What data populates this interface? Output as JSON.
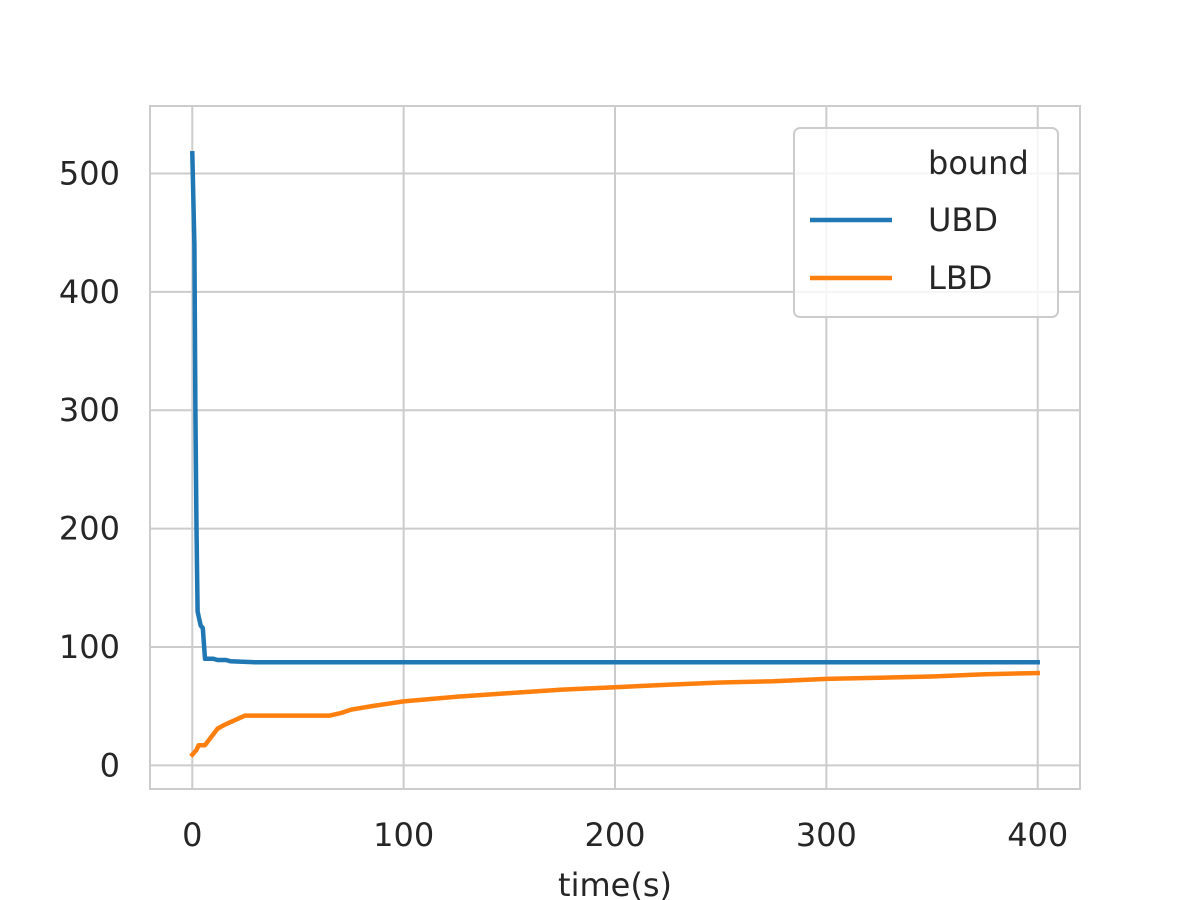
{
  "chart_data": {
    "type": "line",
    "title": "",
    "xlabel": "time(s)",
    "ylabel": "",
    "xlim": [
      -20,
      420
    ],
    "ylim": [
      -20,
      557
    ],
    "xticks": [
      0,
      100,
      200,
      300,
      400
    ],
    "yticks": [
      0,
      100,
      200,
      300,
      400,
      500
    ],
    "xtick_labels": [
      "0",
      "100",
      "200",
      "300",
      "400"
    ],
    "ytick_labels": [
      "0",
      "100",
      "200",
      "300",
      "400",
      "500"
    ],
    "grid": true,
    "legend": {
      "title": "bound",
      "position": "top-right"
    },
    "series": [
      {
        "name": "UBD",
        "color": "#1f77b4",
        "points": [
          [
            0,
            517
          ],
          [
            1,
            440
          ],
          [
            1.5,
            300
          ],
          [
            2,
            200
          ],
          [
            2.5,
            130
          ],
          [
            3,
            126
          ],
          [
            4,
            118
          ],
          [
            5,
            116
          ],
          [
            6,
            90
          ],
          [
            10,
            90
          ],
          [
            12,
            89
          ],
          [
            16,
            89
          ],
          [
            18,
            88
          ],
          [
            30,
            87
          ],
          [
            100,
            87
          ],
          [
            200,
            87
          ],
          [
            300,
            87
          ],
          [
            400,
            87
          ]
        ]
      },
      {
        "name": "LBD",
        "color": "#ff7f0e",
        "points": [
          [
            0,
            9
          ],
          [
            2,
            13
          ],
          [
            3,
            17
          ],
          [
            6,
            17
          ],
          [
            9,
            24
          ],
          [
            12,
            31
          ],
          [
            15,
            34
          ],
          [
            20,
            38
          ],
          [
            25,
            42
          ],
          [
            40,
            42
          ],
          [
            65,
            42
          ],
          [
            70,
            44
          ],
          [
            75,
            47
          ],
          [
            85,
            50
          ],
          [
            100,
            54
          ],
          [
            125,
            58
          ],
          [
            150,
            61
          ],
          [
            175,
            64
          ],
          [
            200,
            66
          ],
          [
            225,
            68
          ],
          [
            250,
            70
          ],
          [
            275,
            71
          ],
          [
            300,
            73
          ],
          [
            325,
            74
          ],
          [
            350,
            75
          ],
          [
            375,
            77
          ],
          [
            400,
            78
          ]
        ]
      }
    ]
  }
}
